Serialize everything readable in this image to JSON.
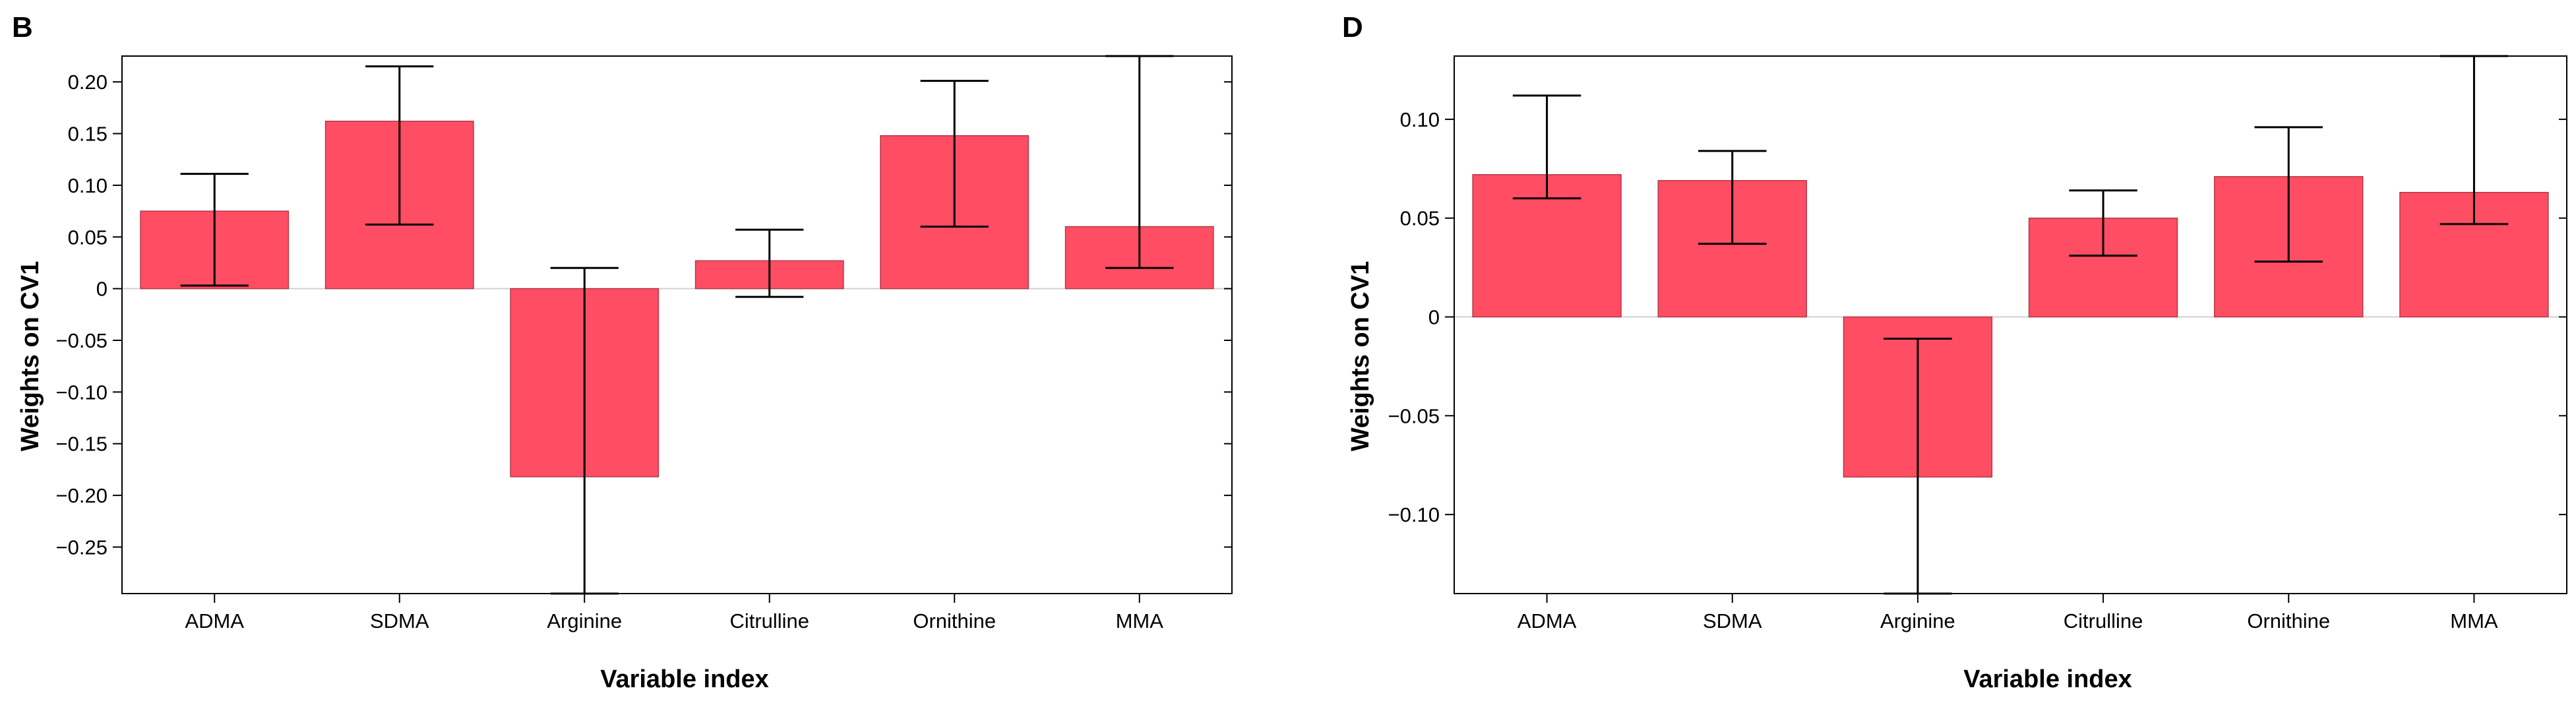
{
  "chart_data": [
    {
      "panel": "B",
      "type": "bar",
      "categories": [
        "ADMA",
        "SDMA",
        "Arginine",
        "Citrulline",
        "Ornithine",
        "MMA"
      ],
      "values": [
        0.075,
        0.162,
        -0.182,
        0.027,
        0.148,
        0.06
      ],
      "error_low": [
        0.003,
        0.062,
        -0.295,
        -0.008,
        0.06,
        0.02
      ],
      "error_high": [
        0.111,
        0.215,
        0.02,
        0.057,
        0.201,
        0.225
      ],
      "xlabel": "Variable index",
      "ylabel": "Weights on CV1",
      "ylim": [
        -0.295,
        0.225
      ],
      "yticks": [
        0.2,
        0.15,
        0.1,
        0.05,
        0,
        -0.05,
        -0.1,
        -0.15,
        -0.2,
        -0.25
      ],
      "ytick_labels": [
        "0.20",
        "0.15",
        "0.10",
        "0.05",
        "0",
        "−0.05",
        "−0.10",
        "−0.15",
        "−0.20",
        "−0.25"
      ],
      "bar_color": "#ff4d63",
      "grid": false
    },
    {
      "panel": "D",
      "type": "bar",
      "categories": [
        "ADMA",
        "SDMA",
        "Arginine",
        "Citrulline",
        "Ornithine",
        "MMA"
      ],
      "values": [
        0.072,
        0.069,
        -0.081,
        0.05,
        0.071,
        0.063
      ],
      "error_low": [
        0.06,
        0.037,
        -0.14,
        0.031,
        0.028,
        0.047
      ],
      "error_high": [
        0.112,
        0.084,
        -0.011,
        0.064,
        0.096,
        0.132
      ],
      "xlabel": "Variable index",
      "ylabel": "Weights on CV1",
      "ylim": [
        -0.14,
        0.132
      ],
      "yticks": [
        0.1,
        0.05,
        0,
        -0.05,
        -0.1
      ],
      "ytick_labels": [
        "0.10",
        "0.05",
        "0",
        "−0.05",
        "−0.10"
      ],
      "bar_color": "#ff4d63",
      "grid": false
    }
  ]
}
